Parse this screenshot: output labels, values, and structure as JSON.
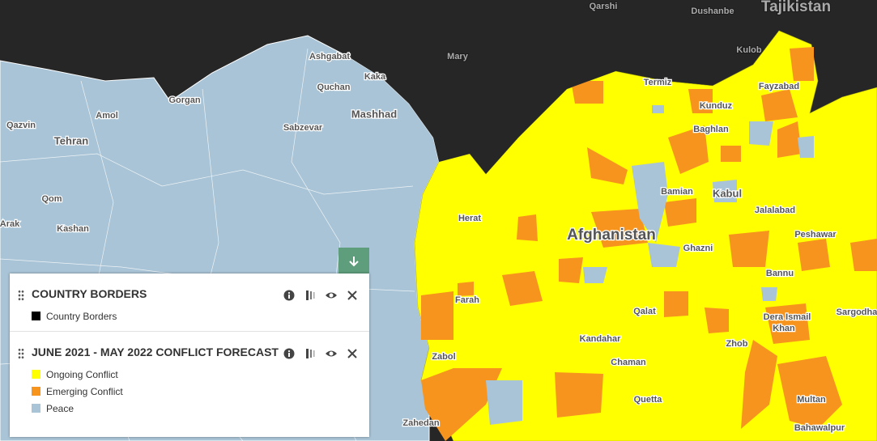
{
  "map": {
    "labels": [
      "Qarshi",
      "Dushanbe",
      "Tajikistan",
      "Ashgabat",
      "Mary",
      "Kaka",
      "Kulob",
      "Termiz",
      "Fayzabad",
      "Quchan",
      "Kunduz",
      "Gorgan",
      "Amol",
      "Mashhad",
      "Baghlan",
      "Qazvin",
      "Sabzevar",
      "Tehran",
      "Bamian",
      "Kabul",
      "Qom",
      "Jalalabad",
      "Herat",
      "Arak",
      "Kashan",
      "Afghanistan",
      "Peshawar",
      "Ghazni",
      "Bannu",
      "Farah",
      "Qalat",
      "Dera Ismail",
      "Khan",
      "Sargodha",
      "Kandahar",
      "Zhob",
      "Zabol",
      "Chaman",
      "Quetta",
      "Multan",
      "Zahedan",
      "Bahawalpur"
    ]
  },
  "legend": {
    "layers": [
      {
        "title": "COUNTRY BORDERS",
        "items": [
          {
            "label": "Country Borders",
            "color": "#000000"
          }
        ]
      },
      {
        "title": "JUNE 2021 - MAY 2022 CONFLICT FORECAST",
        "items": [
          {
            "label": "Ongoing Conflict",
            "color": "#ffff00"
          },
          {
            "label": "Emerging Conflict",
            "color": "#f7941d"
          },
          {
            "label": "Peace",
            "color": "#a9c4d6"
          }
        ]
      }
    ]
  }
}
